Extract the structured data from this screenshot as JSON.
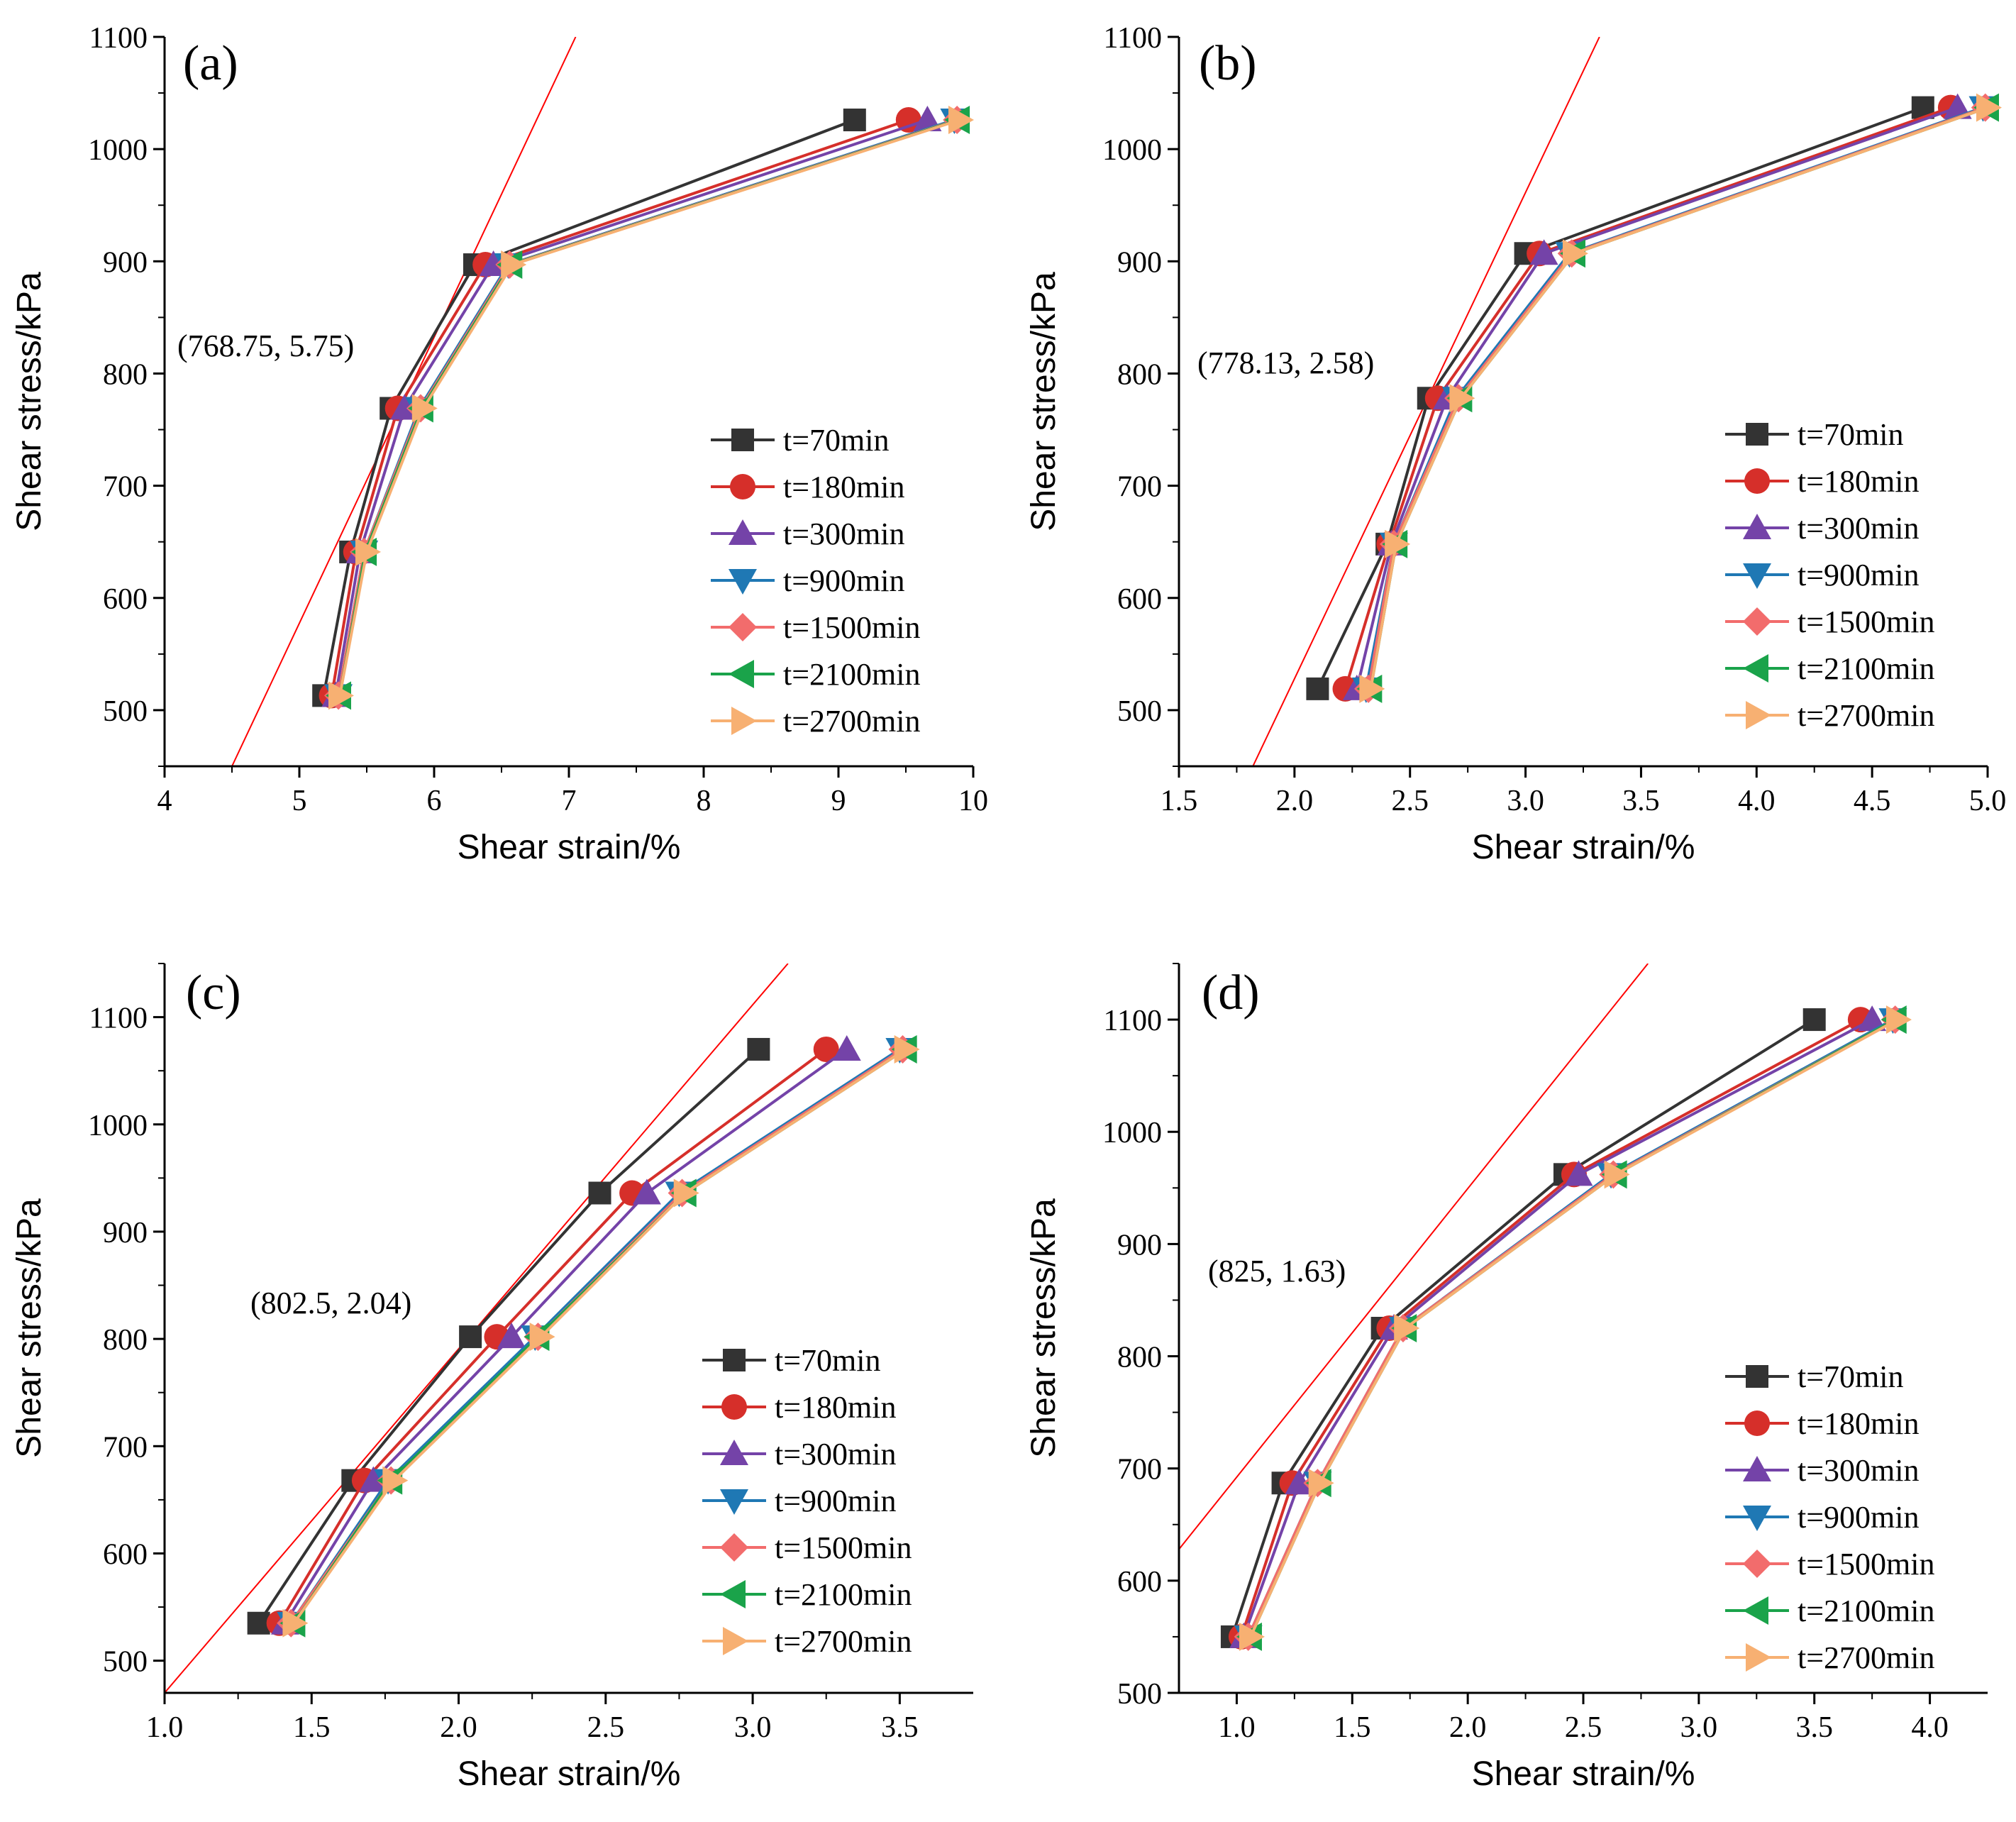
{
  "colors": {
    "axis": "#000000",
    "reference_line": "#ff0000"
  },
  "series_styles": [
    {
      "color": "#333333",
      "marker": "square-icon"
    },
    {
      "color": "#d62f2a",
      "marker": "circle-icon"
    },
    {
      "color": "#7443a8",
      "marker": "triangle-up-icon"
    },
    {
      "color": "#1f78b4",
      "marker": "triangle-down-icon"
    },
    {
      "color": "#f26c6c",
      "marker": "diamond-icon"
    },
    {
      "color": "#1aa34a",
      "marker": "triangle-left-icon"
    },
    {
      "color": "#f7b072",
      "marker": "triangle-right-icon"
    }
  ],
  "chart_data": [
    {
      "type": "line",
      "panel": "(a)",
      "xlabel": "Shear strain/%",
      "ylabel": "Shear stress/kPa",
      "xlim": [
        4,
        10
      ],
      "ylim": [
        450,
        1100
      ],
      "xticks": [
        4,
        5,
        6,
        7,
        8,
        9,
        10
      ],
      "xtick_labels": [
        "4",
        "5",
        "6",
        "7",
        "8",
        "9",
        "10"
      ],
      "yticks": [
        500,
        600,
        700,
        800,
        900,
        1000,
        1100
      ],
      "ytick_labels": [
        "500",
        "600",
        "700",
        "800",
        "900",
        "1000",
        "1100"
      ],
      "annotation": "(768.75, 5.75)",
      "annotation_point": {
        "x": 5.75,
        "y": 768.75
      },
      "reference_line": [
        {
          "x": 4.5,
          "y": 450
        },
        {
          "x": 7.05,
          "y": 1100
        }
      ],
      "y": [
        513,
        641,
        769,
        897,
        1026
      ],
      "legend_position": "lower-right",
      "series": [
        {
          "name": "t=70min",
          "x": [
            5.18,
            5.38,
            5.68,
            6.3,
            9.12
          ]
        },
        {
          "name": "t=180min",
          "x": [
            5.24,
            5.42,
            5.73,
            6.38,
            9.52
          ]
        },
        {
          "name": "t=300min",
          "x": [
            5.27,
            5.45,
            5.78,
            6.44,
            9.66
          ]
        },
        {
          "name": "t=900min",
          "x": [
            5.29,
            5.48,
            5.89,
            6.55,
            9.86
          ]
        },
        {
          "name": "t=1500min",
          "x": [
            5.29,
            5.48,
            5.9,
            6.56,
            9.88
          ]
        },
        {
          "name": "t=2100min",
          "x": [
            5.3,
            5.49,
            5.91,
            6.57,
            9.89
          ]
        },
        {
          "name": "t=2700min",
          "x": [
            5.3,
            5.5,
            5.92,
            6.58,
            9.9
          ]
        }
      ]
    },
    {
      "type": "line",
      "panel": "(b)",
      "xlabel": "Shear strain/%",
      "ylabel": "Shear stress/kPa",
      "xlim": [
        1.5,
        5.0
      ],
      "ylim": [
        450,
        1100
      ],
      "xticks": [
        1.5,
        2.0,
        2.5,
        3.0,
        3.5,
        4.0,
        4.5,
        5.0
      ],
      "xtick_labels": [
        "1.5",
        "2.0",
        "2.5",
        "3.0",
        "3.5",
        "4.0",
        "4.5",
        "5.0"
      ],
      "yticks": [
        500,
        600,
        700,
        800,
        900,
        1000,
        1100
      ],
      "ytick_labels": [
        "500",
        "600",
        "700",
        "800",
        "900",
        "1000",
        "1100"
      ],
      "annotation": "(778.13, 2.58)",
      "annotation_point": {
        "x": 2.58,
        "y": 778.13
      },
      "reference_line": [
        {
          "x": 1.82,
          "y": 450
        },
        {
          "x": 3.32,
          "y": 1100
        }
      ],
      "y": [
        519,
        648,
        778,
        907,
        1037
      ],
      "legend_position": "lower-right",
      "series": [
        {
          "name": "t=70min",
          "x": [
            2.1,
            2.4,
            2.58,
            3.0,
            4.72
          ]
        },
        {
          "name": "t=180min",
          "x": [
            2.22,
            2.41,
            2.62,
            3.06,
            4.84
          ]
        },
        {
          "name": "t=300min",
          "x": [
            2.27,
            2.42,
            2.66,
            3.08,
            4.87
          ]
        },
        {
          "name": "t=900min",
          "x": [
            2.31,
            2.43,
            2.7,
            3.19,
            4.98
          ]
        },
        {
          "name": "t=1500min",
          "x": [
            2.32,
            2.43,
            2.71,
            3.2,
            4.99
          ]
        },
        {
          "name": "t=2100min",
          "x": [
            2.33,
            2.44,
            2.72,
            3.21,
            5.0
          ]
        },
        {
          "name": "t=2700min",
          "x": [
            2.33,
            2.44,
            2.72,
            3.21,
            5.0
          ]
        }
      ]
    },
    {
      "type": "line",
      "panel": "(c)",
      "xlabel": "Shear strain/%",
      "ylabel": "Shear stress/kPa",
      "xlim": [
        1.0,
        3.75
      ],
      "ylim": [
        470,
        1150
      ],
      "xticks": [
        1.0,
        1.5,
        2.0,
        2.5,
        3.0,
        3.5
      ],
      "xtick_labels": [
        "1.0",
        "1.5",
        "2.0",
        "2.5",
        "3.0",
        "3.5"
      ],
      "yticks": [
        500,
        600,
        700,
        800,
        900,
        1000,
        1100
      ],
      "ytick_labels": [
        "500",
        "600",
        "700",
        "800",
        "900",
        "1000",
        "1100"
      ],
      "annotation": "(802.5, 2.04)",
      "annotation_point": {
        "x": 2.04,
        "y": 802.5
      },
      "reference_line": [
        {
          "x": 1.0,
          "y": 470
        },
        {
          "x": 3.12,
          "y": 1150
        }
      ],
      "y": [
        535,
        668,
        802,
        936,
        1070
      ],
      "legend_position": "lower-right",
      "series": [
        {
          "name": "t=70min",
          "x": [
            1.32,
            1.64,
            2.04,
            2.48,
            3.02
          ]
        },
        {
          "name": "t=180min",
          "x": [
            1.39,
            1.68,
            2.13,
            2.59,
            3.25
          ]
        },
        {
          "name": "t=300min",
          "x": [
            1.41,
            1.71,
            2.18,
            2.64,
            3.32
          ]
        },
        {
          "name": "t=900min",
          "x": [
            1.43,
            1.76,
            2.26,
            2.75,
            3.5
          ]
        },
        {
          "name": "t=1500min",
          "x": [
            1.43,
            1.77,
            2.27,
            2.76,
            3.51
          ]
        },
        {
          "name": "t=2100min",
          "x": [
            1.44,
            1.77,
            2.27,
            2.77,
            3.52
          ]
        },
        {
          "name": "t=2700min",
          "x": [
            1.44,
            1.78,
            2.28,
            2.77,
            3.52
          ]
        }
      ]
    },
    {
      "type": "line",
      "panel": "(d)",
      "xlabel": "Shear strain/%",
      "ylabel": "Shear stress/kPa",
      "xlim": [
        0.75,
        4.25
      ],
      "ylim": [
        500,
        1150
      ],
      "xticks": [
        1.0,
        1.5,
        2.0,
        2.5,
        3.0,
        3.5,
        4.0
      ],
      "xtick_labels": [
        "1.0",
        "1.5",
        "2.0",
        "2.5",
        "3.0",
        "3.5",
        "4.0"
      ],
      "yticks": [
        500,
        600,
        700,
        800,
        900,
        1000,
        1100
      ],
      "ytick_labels": [
        "500",
        "600",
        "700",
        "800",
        "900",
        "1000",
        "1100"
      ],
      "annotation": "(825, 1.63)",
      "annotation_point": {
        "x": 1.63,
        "y": 825
      },
      "reference_line": [
        {
          "x": 0.75,
          "y": 628
        },
        {
          "x": 2.78,
          "y": 1150
        }
      ],
      "y": [
        550,
        687,
        825,
        962,
        1100
      ],
      "legend_position": "lower-right",
      "series": [
        {
          "name": "t=70min",
          "x": [
            0.98,
            1.2,
            1.63,
            2.42,
            3.5
          ]
        },
        {
          "name": "t=180min",
          "x": [
            1.02,
            1.24,
            1.66,
            2.46,
            3.7
          ]
        },
        {
          "name": "t=300min",
          "x": [
            1.03,
            1.27,
            1.68,
            2.48,
            3.75
          ]
        },
        {
          "name": "t=900min",
          "x": [
            1.05,
            1.35,
            1.72,
            2.62,
            3.84
          ]
        },
        {
          "name": "t=1500min",
          "x": [
            1.05,
            1.35,
            1.72,
            2.63,
            3.85
          ]
        },
        {
          "name": "t=2100min",
          "x": [
            1.06,
            1.36,
            1.73,
            2.64,
            3.85
          ]
        },
        {
          "name": "t=2700min",
          "x": [
            1.06,
            1.36,
            1.73,
            2.64,
            3.86
          ]
        }
      ]
    }
  ]
}
